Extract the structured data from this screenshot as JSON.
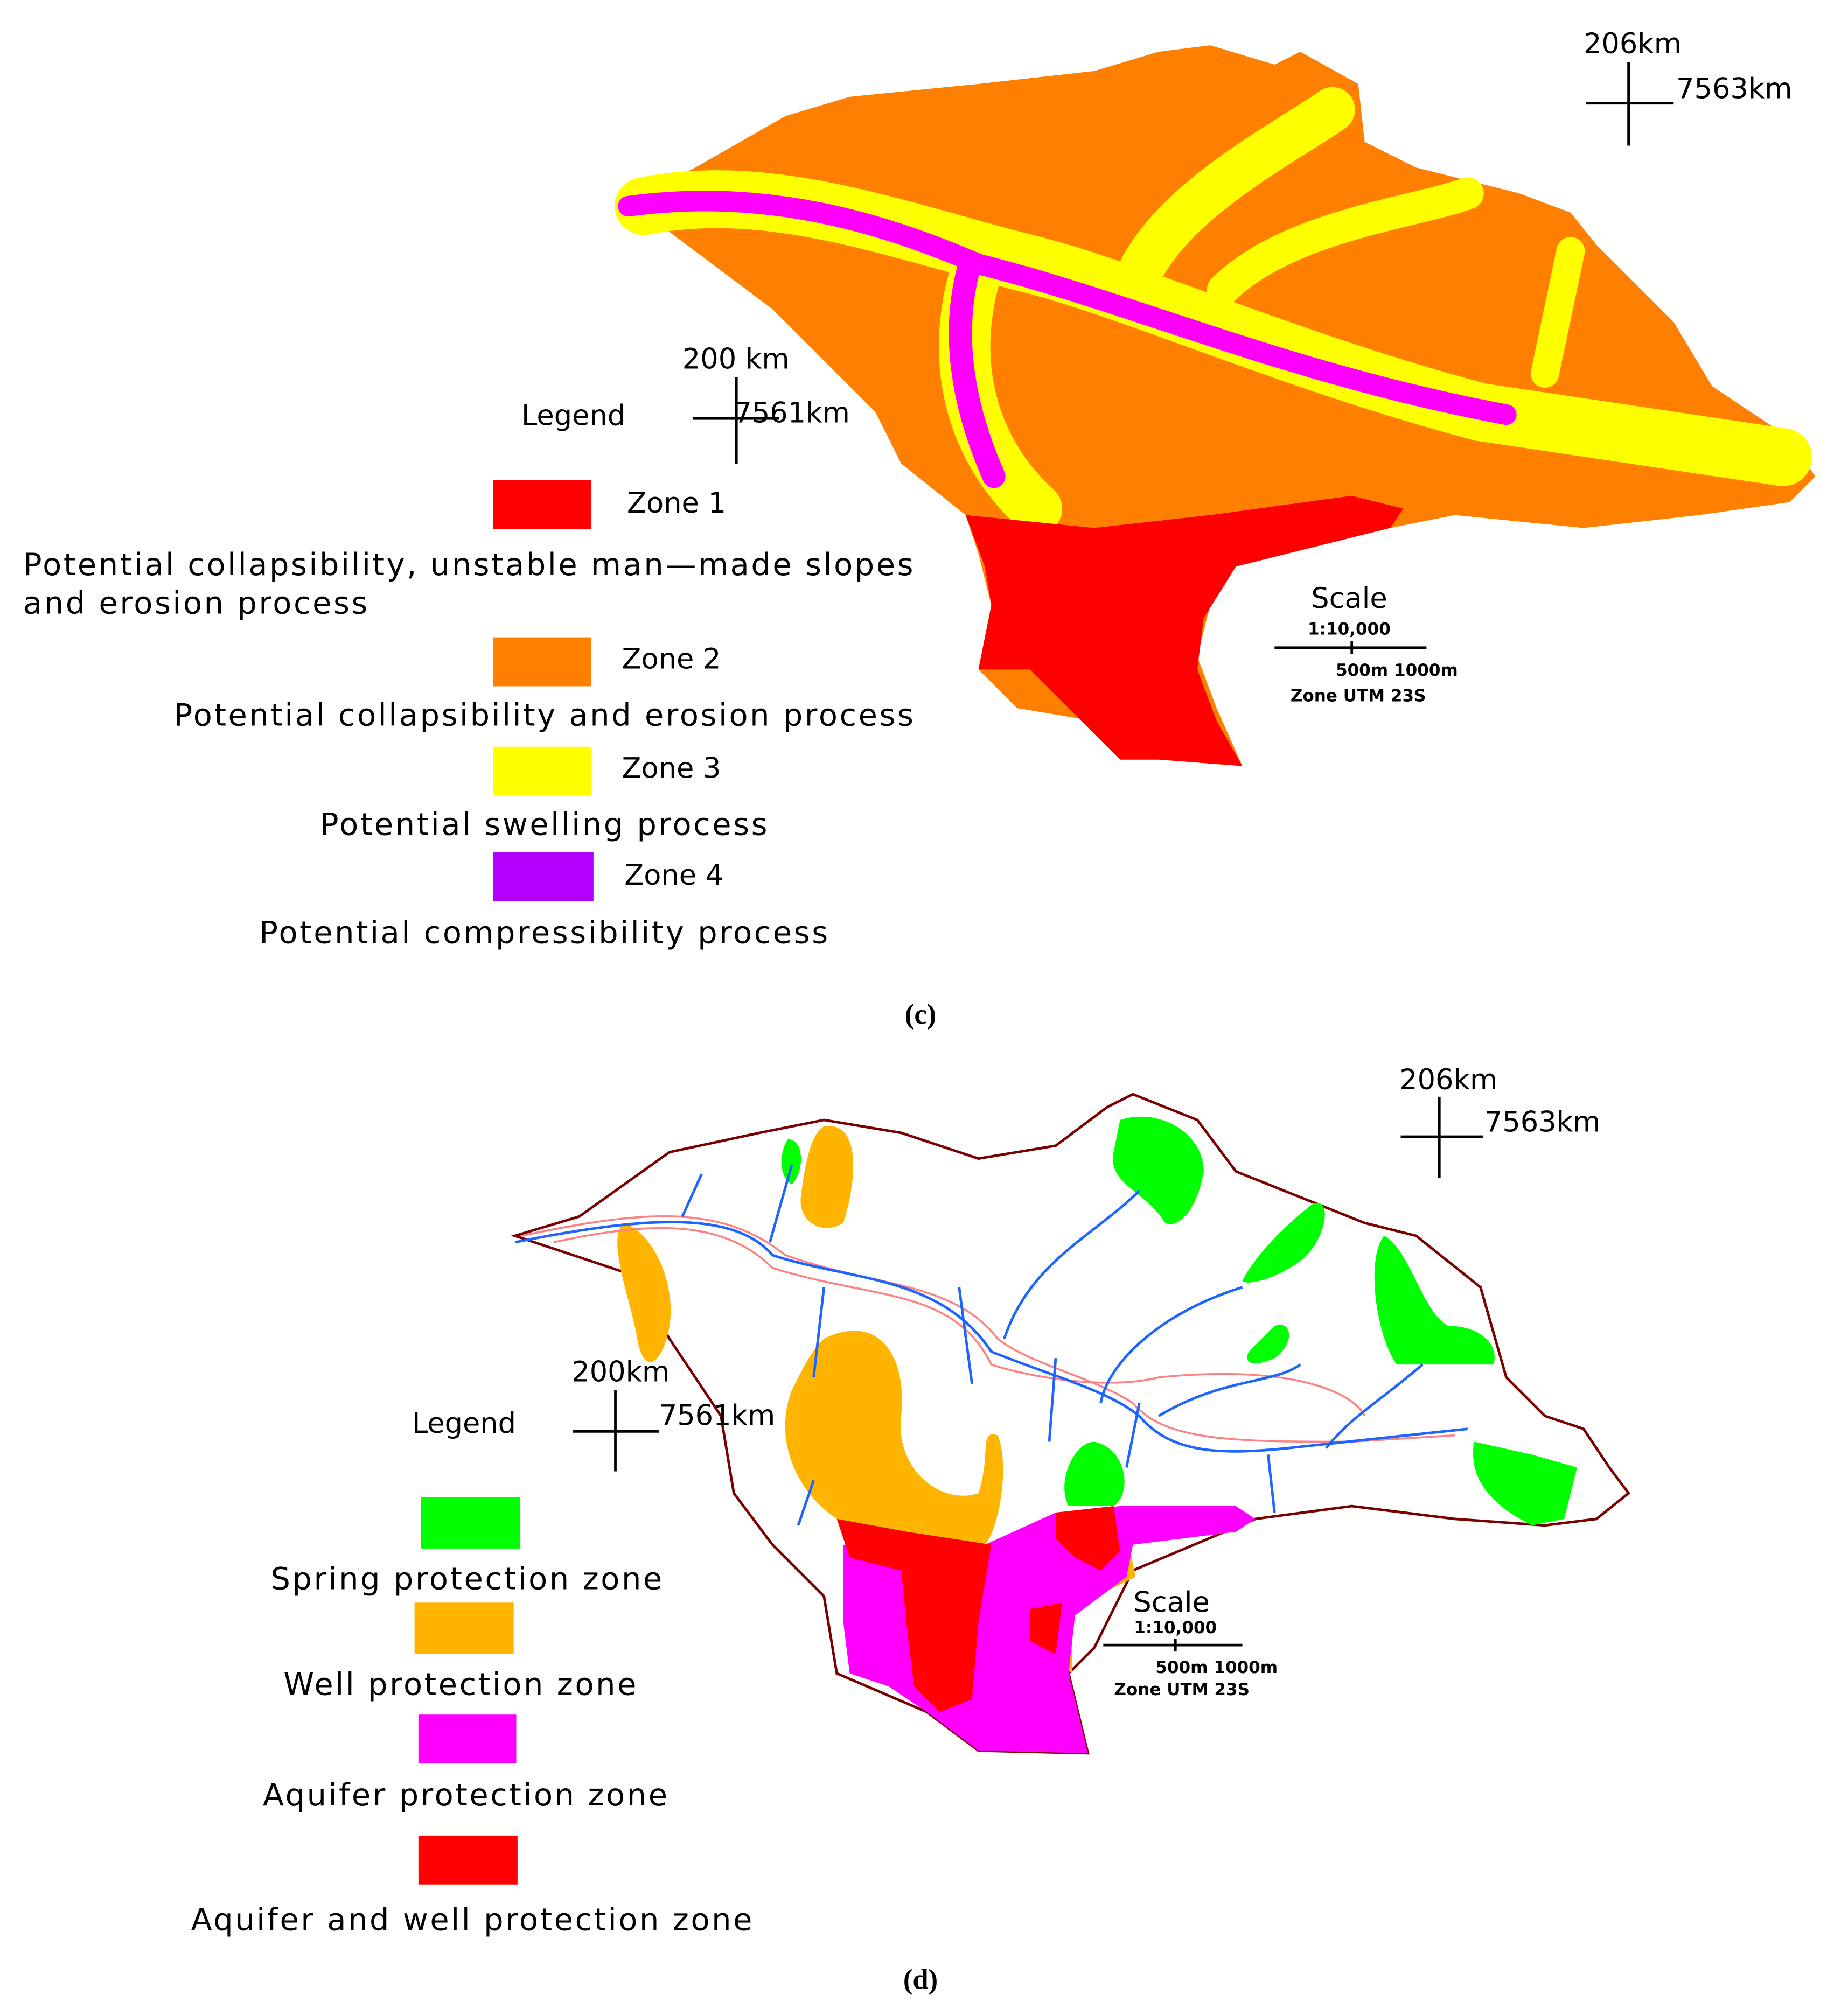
{
  "panel_c": {
    "north_east": {
      "x": "206km",
      "y": "7563km"
    },
    "south_west": {
      "x": "200 km",
      "y": "7561km"
    },
    "legend_title": "Legend",
    "legend": [
      {
        "label": "Zone 1",
        "description_lines": [
          "Potential collapsibility, unstable man—made slopes",
          "and erosion process"
        ]
      },
      {
        "label": "Zone 2",
        "description_lines": [
          "Potential collapsibility and erosion process"
        ]
      },
      {
        "label": "Zone 3",
        "description_lines": [
          "Potential swelling process"
        ]
      },
      {
        "label": "Zone 4",
        "description_lines": [
          "Potential compressibility process"
        ]
      }
    ],
    "scale": {
      "title": "Scale",
      "ratio": "1:10,000",
      "marks": "500m 1000m",
      "zone": "Zone UTM 23S"
    },
    "caption": "(c)"
  },
  "panel_d": {
    "north_east": {
      "x": "206km",
      "y": "7563km"
    },
    "south_west": {
      "x": "200km",
      "y": "7561km"
    },
    "legend_title": "Legend",
    "legend": [
      {
        "description": "Spring protection zone"
      },
      {
        "description": "Well protection zone"
      },
      {
        "description": "Aquifer protection zone"
      },
      {
        "description": "Aquifer and well protection zone"
      }
    ],
    "scale": {
      "title": "Scale",
      "ratio": "1:10,000",
      "marks": "500m 1000m",
      "zone": "Zone UTM 23S"
    },
    "caption": "(d)"
  }
}
